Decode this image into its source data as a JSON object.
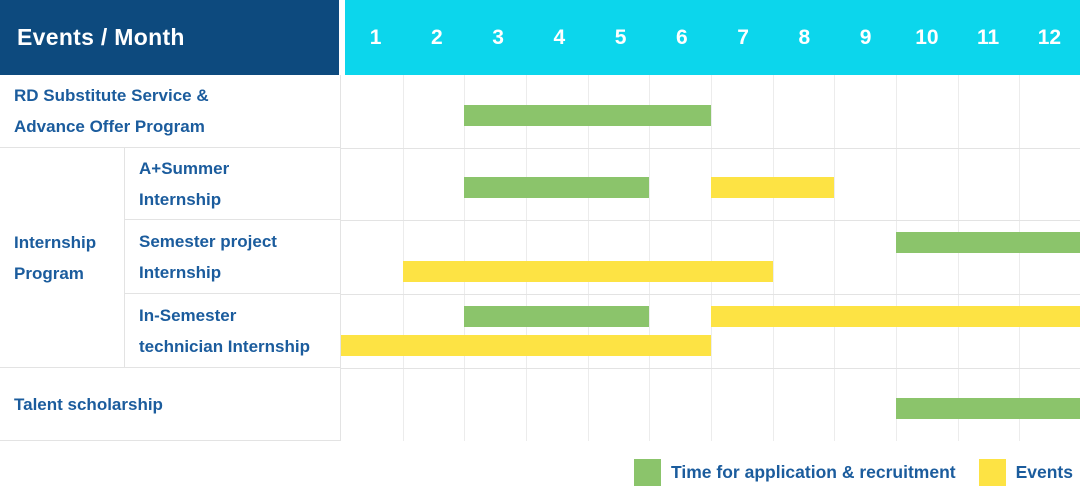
{
  "header": {
    "corner_label": "Events / Month",
    "months": [
      "1",
      "2",
      "3",
      "4",
      "5",
      "6",
      "7",
      "8",
      "9",
      "10",
      "11",
      "12"
    ]
  },
  "group": {
    "label": "Internship Program",
    "lines": [
      "Internship",
      "Program"
    ]
  },
  "chart_data": {
    "type": "gantt",
    "unit": "month",
    "axis": {
      "min": 1,
      "max": 12,
      "tick_labels": [
        "1",
        "2",
        "3",
        "4",
        "5",
        "6",
        "7",
        "8",
        "9",
        "10",
        "11",
        "12"
      ]
    },
    "bar_types": {
      "application": {
        "label": "Time for application & recruitment",
        "color": "#8bc46b"
      },
      "event": {
        "label": "Events",
        "color": "#fde344"
      }
    },
    "rows": [
      {
        "label": "RD Substitute Service & Advance Offer Program",
        "lines": [
          "RD Substitute Service &",
          "Advance Offer Program"
        ],
        "group": null,
        "bars": [
          {
            "type": "application",
            "start": 3,
            "end": 6,
            "line": "center"
          }
        ]
      },
      {
        "label": "A+Summer Internship",
        "lines": [
          "A+Summer",
          "Internship"
        ],
        "group": "Internship Program",
        "bars": [
          {
            "type": "application",
            "start": 3,
            "end": 5,
            "line": "center"
          },
          {
            "type": "event",
            "start": 7,
            "end": 8,
            "line": "center"
          }
        ]
      },
      {
        "label": "Semester project Internship",
        "lines": [
          "Semester project",
          "Internship"
        ],
        "group": "Internship Program",
        "bars": [
          {
            "type": "application",
            "start": 10,
            "end": 12,
            "line": "top"
          },
          {
            "type": "event",
            "start": 2,
            "end": 7,
            "line": "bottom"
          }
        ]
      },
      {
        "label": "In-Semester technician Internship",
        "lines": [
          "In-Semester",
          "technician Internship"
        ],
        "group": "Internship Program",
        "bars": [
          {
            "type": "application",
            "start": 3,
            "end": 5,
            "line": "top"
          },
          {
            "type": "event",
            "start": 7,
            "end": 12,
            "line": "top"
          },
          {
            "type": "event",
            "start": 1,
            "end": 6,
            "line": "bottom"
          }
        ]
      },
      {
        "label": "Talent scholarship",
        "lines": [
          "Talent scholarship"
        ],
        "group": null,
        "bars": [
          {
            "type": "application",
            "start": 10,
            "end": 12,
            "line": "center"
          }
        ]
      }
    ]
  },
  "legend": [
    {
      "label": "Time for application & recruitment",
      "color": "#8bc46b"
    },
    {
      "label": "Events",
      "color": "#fde344"
    }
  ],
  "colors": {
    "header_bg": "#0d4a7e",
    "month_strip_bg": "#0cd6ec",
    "application_green": "#8bc46b",
    "event_yellow": "#fde344",
    "label_text": "#1b5c9d",
    "grid_line": "#e3e3e3"
  }
}
